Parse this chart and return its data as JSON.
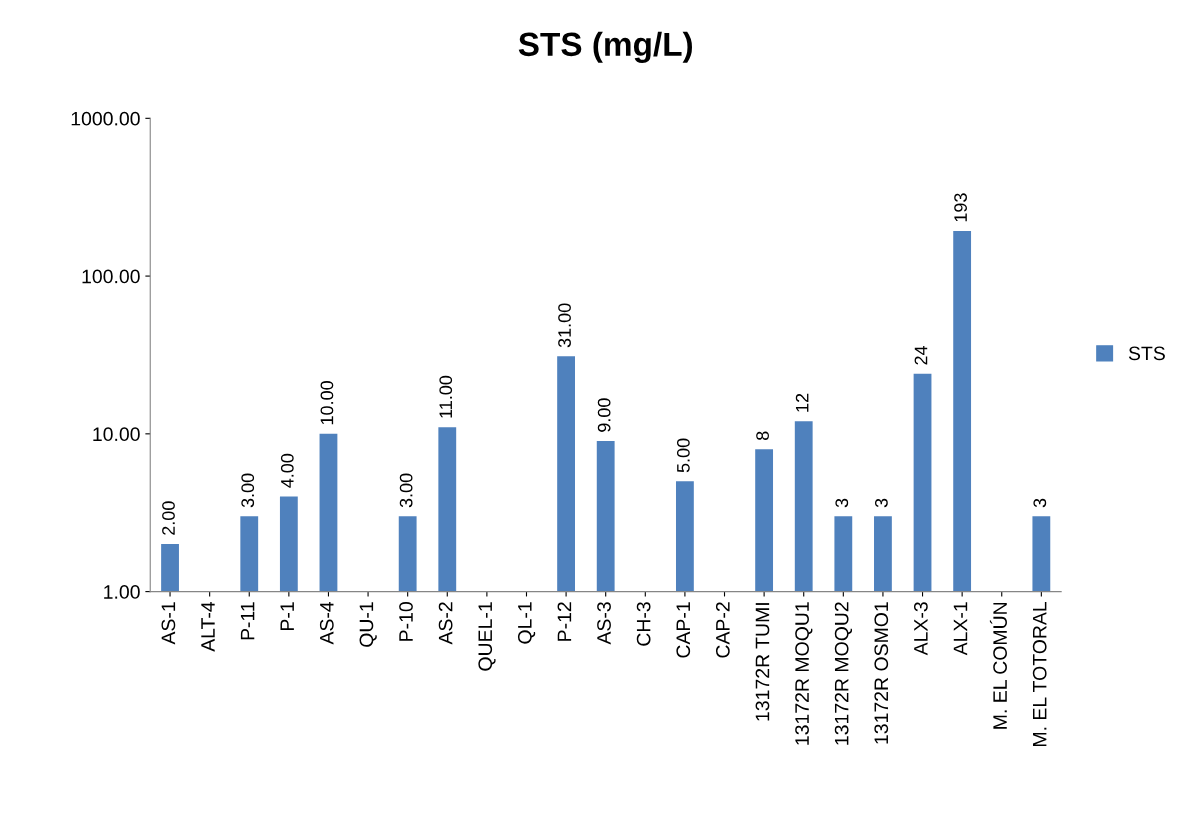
{
  "chart_data": {
    "type": "bar",
    "title": "STS (mg/L)",
    "categories": [
      "AS-1",
      "ALT-4",
      "P-11",
      "P-1",
      "AS-4",
      "QU-1",
      "P-10",
      "AS-2",
      "QUEL-1",
      "QL-1",
      "P-12",
      "AS-3",
      "CH-3",
      "CAP-1",
      "CAP-2",
      "13172R TUMI",
      "13172R MOQU1",
      "13172R MOQU2",
      "13172R OSMO1",
      "ALX-3",
      "ALX-1",
      "M. EL COMÚN",
      "M. EL TOTORAL"
    ],
    "series": [
      {
        "name": "STS",
        "color": "#4f81bd",
        "values": [
          2,
          null,
          3,
          4,
          10,
          null,
          3,
          11,
          null,
          null,
          31,
          9,
          null,
          5,
          null,
          8,
          12,
          3,
          3,
          24,
          193,
          null,
          3
        ],
        "value_labels": [
          "2.00",
          null,
          "3.00",
          "4.00",
          "10.00",
          null,
          "3.00",
          "11.00",
          null,
          null,
          "31.00",
          "9.00",
          null,
          "5.00",
          null,
          "8",
          "12",
          "3",
          "3",
          "24",
          "193",
          null,
          "3"
        ]
      }
    ],
    "log": true,
    "ylim": [
      1,
      1000
    ],
    "yticks": [
      {
        "value": 1,
        "label": "1.00"
      },
      {
        "value": 10,
        "label": "10.00"
      },
      {
        "value": 100,
        "label": "100.00"
      },
      {
        "value": 1000,
        "label": "1000.00"
      }
    ],
    "grid": false,
    "legend": "right"
  }
}
